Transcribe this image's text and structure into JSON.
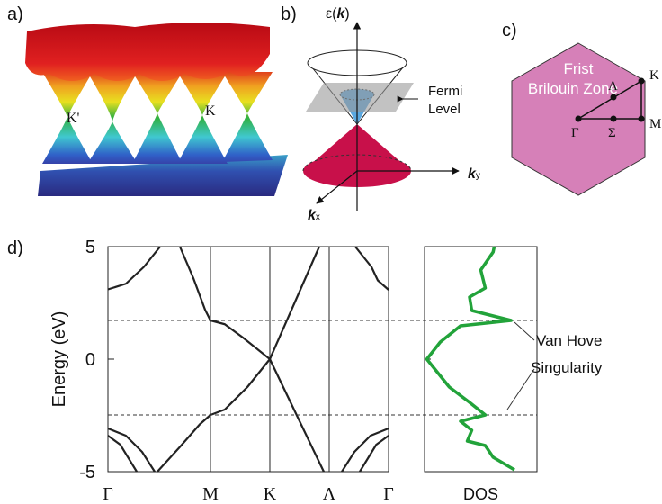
{
  "panels": {
    "a": {
      "label": "a)",
      "k_prime": "K'",
      "k": "K"
    },
    "b": {
      "label": "b)",
      "energy_axis_parts": [
        "ε(",
        "k",
        ")"
      ],
      "fermi_level": [
        "Fermi",
        "Level"
      ],
      "ky_axis": {
        "symbol": "k",
        "subscript": "y"
      },
      "kx_axis": {
        "symbol": "k",
        "subscript": "x"
      }
    },
    "c": {
      "label": "c)",
      "zone_title": [
        "Frist",
        "Brilouin Zone"
      ],
      "points": {
        "K": "K",
        "Lambda": "Λ",
        "M": "M",
        "Gamma": "Γ",
        "Sigma": "Σ"
      }
    },
    "d": {
      "label": "d)",
      "annotation": [
        "Van Hove",
        "Singularity"
      ]
    }
  },
  "chart_data": [
    {
      "type": "line",
      "ylabel": "Energy (eV)",
      "xlim": [
        0,
        2.737
      ],
      "xticks": [
        {
          "value": 0,
          "label": "Γ"
        },
        {
          "value": 1,
          "label": "M"
        },
        {
          "value": 1.579,
          "label": "K"
        },
        {
          "value": 2.158,
          "label": "Λ"
        },
        {
          "value": 2.737,
          "label": "Γ"
        }
      ],
      "ylim": [
        -5,
        5
      ],
      "yticks": [
        -5,
        0,
        5
      ],
      "grid": "x",
      "hlines": [
        1.72,
        -2.48
      ],
      "series": [
        {
          "color": "#222222",
          "x": [
            0,
            0.175,
            0.351,
            0.509
          ],
          "values": [
            3.1,
            3.35,
            4.1,
            5
          ]
        },
        {
          "color": "#222222",
          "x": [
            0.702,
            0.833,
            0.947,
            1,
            1.14,
            1.316,
            1.579
          ],
          "values": [
            5,
            3.6,
            2.2,
            1.72,
            1.55,
            0.96,
            0
          ]
        },
        {
          "color": "#222222",
          "x": [
            0.482,
            0.702,
            0.895,
            1,
            1.14,
            1.36,
            1.579
          ],
          "values": [
            -5,
            -3.9,
            -2.9,
            -2.48,
            -2.24,
            -1.24,
            0
          ]
        },
        {
          "color": "#222222",
          "x": [
            1.579,
            2.061
          ],
          "values": [
            0,
            5
          ]
        },
        {
          "color": "#222222",
          "x": [
            1.579,
            2.105
          ],
          "values": [
            0,
            -5
          ]
        },
        {
          "color": "#222222",
          "x": [
            2.412,
            2.57,
            2.632,
            2.737
          ],
          "values": [
            5,
            4.1,
            3.5,
            3.08
          ]
        },
        {
          "color": "#222222",
          "x": [
            0,
            0.175,
            0.333,
            0.456
          ],
          "values": [
            -3.08,
            -3.4,
            -4.12,
            -5
          ]
        },
        {
          "color": "#222222",
          "x": [
            0,
            0.12,
            0.281
          ],
          "values": [
            -3.4,
            -3.8,
            -5
          ]
        },
        {
          "color": "#222222",
          "x": [
            2.737,
            2.561,
            2.404,
            2.281
          ],
          "values": [
            -3.08,
            -3.4,
            -4.12,
            -5
          ]
        },
        {
          "color": "#222222",
          "x": [
            2.737,
            2.617,
            2.456
          ],
          "values": [
            -3.4,
            -3.8,
            -5
          ]
        }
      ]
    },
    {
      "type": "line",
      "xlabel": "DOS",
      "xlim": [
        0,
        1
      ],
      "ylim": [
        -5,
        5
      ],
      "series": [
        {
          "color": "#22a33a",
          "x": [
            0.8,
            0.61,
            0.54,
            0.38,
            0.42,
            0.32,
            0.54,
            0.4,
            0.22,
            0.02,
            0.14,
            0.32,
            0.77,
            0.42,
            0.4,
            0.54,
            0.5,
            0.61,
            0.62
          ],
          "values": [
            -4.92,
            -4.36,
            -3.84,
            -3.64,
            -3.16,
            -2.76,
            -2.48,
            -1.92,
            -1.24,
            0,
            0.76,
            1.48,
            1.72,
            2.16,
            2.76,
            3.16,
            3.96,
            4.76,
            5
          ]
        }
      ]
    }
  ]
}
